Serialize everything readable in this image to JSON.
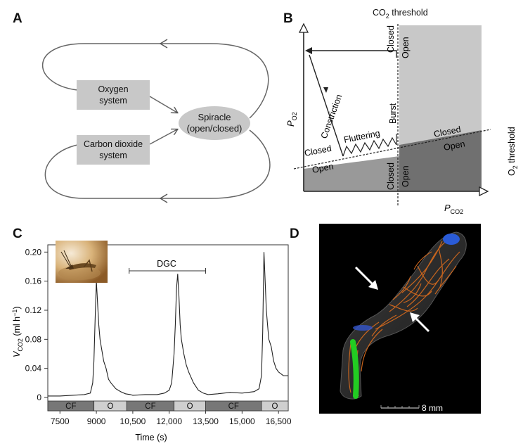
{
  "panels": {
    "a": {
      "label": "A",
      "oxygen_line1": "Oxygen",
      "oxygen_line2": "system",
      "co2_line1": "Carbon dioxide",
      "co2_line2": "system",
      "spiracle_line1": "Spiracle",
      "spiracle_line2": "(open/closed)"
    },
    "b": {
      "label": "B",
      "co2_threshold": "CO",
      "co2_threshold_sub": "2",
      "co2_threshold_rest": " threshold",
      "o2_threshold": "O",
      "o2_threshold_sub": "2",
      "o2_threshold_rest": " threshold",
      "y_axis": "P",
      "y_axis_sub": "O2",
      "x_axis": "P",
      "x_axis_sub": "CO2",
      "closed": "Closed",
      "open": "Open",
      "constriction": "Constriction",
      "fluttering": "Fluttering",
      "burst": "Burst"
    },
    "c": {
      "label": "C",
      "ylabel_v": "V",
      "ylabel_sub": "CO2",
      "ylabel_unit": " (ml h",
      "ylabel_exp": "−1",
      "ylabel_close": ")",
      "xlabel": "Time (s)",
      "dgc": "DGC",
      "phase_cf": "CF",
      "phase_o": "O"
    },
    "d": {
      "label": "D",
      "scale": "8 mm"
    }
  },
  "chart_data": {
    "type": "line",
    "title": "",
    "xlabel": "Time (s)",
    "ylabel": "VCO2 (ml h−1)",
    "xlim": [
      7000,
      16900
    ],
    "ylim": [
      0,
      0.21
    ],
    "x_ticks": [
      "7500",
      "9000",
      "10,500",
      "12,000",
      "13,500",
      "15,000",
      "16,500"
    ],
    "x_tick_values": [
      7500,
      9000,
      10500,
      12000,
      13500,
      15000,
      16500
    ],
    "y_ticks": [
      "0",
      "0.04",
      "0.08",
      "0.12",
      "0.16",
      "0.20"
    ],
    "y_tick_values": [
      0,
      0.04,
      0.08,
      0.12,
      0.16,
      0.2
    ],
    "series": [
      {
        "x": [
          7000,
          7500,
          8000,
          8500,
          8750,
          8850,
          8900,
          8950,
          9000,
          9050,
          9100,
          9150,
          9200,
          9300,
          9400,
          9500,
          9600,
          9800,
          10000,
          10200,
          10400,
          10500,
          11000,
          11500,
          11800,
          12000,
          12100,
          12200,
          12250,
          12300,
          12350,
          12400,
          12450,
          12500,
          12600,
          12700,
          12800,
          13000,
          13200,
          13400,
          13600,
          14000,
          14500,
          15000,
          15500,
          15700,
          15800,
          15850,
          15900,
          15950,
          16000,
          16050,
          16100,
          16200,
          16300,
          16400,
          16500,
          16700,
          16900
        ],
        "y": [
          0.002,
          0.002,
          0.003,
          0.004,
          0.006,
          0.02,
          0.05,
          0.11,
          0.16,
          0.13,
          0.1,
          0.08,
          0.07,
          0.05,
          0.04,
          0.025,
          0.02,
          0.012,
          0.008,
          0.005,
          0.004,
          0.003,
          0.004,
          0.004,
          0.006,
          0.01,
          0.02,
          0.06,
          0.1,
          0.15,
          0.17,
          0.14,
          0.1,
          0.08,
          0.06,
          0.045,
          0.035,
          0.02,
          0.01,
          0.006,
          0.004,
          0.005,
          0.007,
          0.006,
          0.008,
          0.012,
          0.03,
          0.09,
          0.2,
          0.16,
          0.12,
          0.1,
          0.08,
          0.07,
          0.05,
          0.04,
          0.035,
          0.03,
          0.03
        ]
      }
    ],
    "phases": [
      {
        "label": "CF",
        "start": 7000,
        "end": 8900,
        "fill": "#777777"
      },
      {
        "label": "O",
        "start": 8900,
        "end": 10250,
        "fill": "#cfcfcf"
      },
      {
        "label": "CF",
        "start": 10250,
        "end": 12200,
        "fill": "#777777"
      },
      {
        "label": "O",
        "start": 12200,
        "end": 13500,
        "fill": "#cfcfcf"
      },
      {
        "label": "CF",
        "start": 13500,
        "end": 15800,
        "fill": "#777777"
      },
      {
        "label": "O",
        "start": 15800,
        "end": 16900,
        "fill": "#cfcfcf"
      }
    ],
    "dgc_range": [
      10350,
      13500
    ],
    "line_color": "#222222",
    "legend": "none",
    "grid": false
  }
}
